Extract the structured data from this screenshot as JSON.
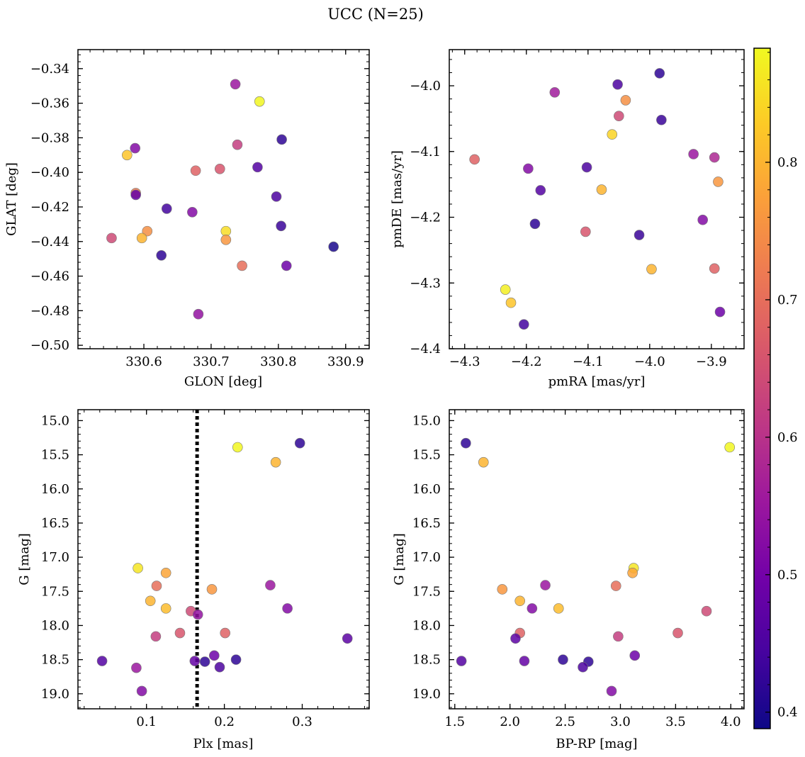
{
  "figure": {
    "title": "UCC (N=25)",
    "colorbar_ticks": [
      "0.4",
      "0.5",
      "0.6",
      "0.7",
      "0.8"
    ],
    "colorbar_range": [
      0.388,
      0.883
    ],
    "colormap": [
      "#0d0887",
      "#46039f",
      "#7201a8",
      "#9c179e",
      "#bd3786",
      "#d8576b",
      "#ed7953",
      "#fb9f3a",
      "#fdca26",
      "#f0f921"
    ]
  },
  "chart_data": [
    {
      "type": "scatter",
      "title": "",
      "xlabel": "GLON [deg]",
      "ylabel": "GLAT [deg]",
      "xlim": [
        330.502,
        330.935
      ],
      "ylim": [
        -0.502,
        -0.329
      ],
      "y_inverted": false,
      "xticks": [
        330.6,
        330.7,
        330.8,
        330.9
      ],
      "xtick_labels": [
        "330.6",
        "330.7",
        "330.8",
        "330.9"
      ],
      "yticks": [
        -0.5,
        -0.48,
        -0.46,
        -0.44,
        -0.42,
        -0.4,
        -0.38,
        -0.36,
        -0.34
      ],
      "ytick_labels": [
        "−0.50",
        "−0.48",
        "−0.46",
        "−0.44",
        "−0.42",
        "−0.40",
        "−0.38",
        "−0.36",
        "−0.34"
      ],
      "points": [
        {
          "x": 330.736,
          "y": -0.349,
          "c": 0.55
        },
        {
          "x": 330.772,
          "y": -0.359,
          "c": 0.88
        },
        {
          "x": 330.575,
          "y": -0.39,
          "c": 0.82
        },
        {
          "x": 330.587,
          "y": -0.386,
          "c": 0.52
        },
        {
          "x": 330.805,
          "y": -0.381,
          "c": 0.42
        },
        {
          "x": 330.739,
          "y": -0.384,
          "c": 0.62
        },
        {
          "x": 330.769,
          "y": -0.397,
          "c": 0.46
        },
        {
          "x": 330.713,
          "y": -0.398,
          "c": 0.66
        },
        {
          "x": 330.677,
          "y": -0.399,
          "c": 0.68
        },
        {
          "x": 330.588,
          "y": -0.412,
          "c": 0.72
        },
        {
          "x": 330.588,
          "y": -0.413,
          "c": 0.48
        },
        {
          "x": 330.797,
          "y": -0.414,
          "c": 0.45
        },
        {
          "x": 330.634,
          "y": -0.421,
          "c": 0.44
        },
        {
          "x": 330.672,
          "y": -0.423,
          "c": 0.52
        },
        {
          "x": 330.722,
          "y": -0.434,
          "c": 0.85
        },
        {
          "x": 330.804,
          "y": -0.431,
          "c": 0.43
        },
        {
          "x": 330.605,
          "y": -0.434,
          "c": 0.75
        },
        {
          "x": 330.597,
          "y": -0.438,
          "c": 0.8
        },
        {
          "x": 330.552,
          "y": -0.438,
          "c": 0.64
        },
        {
          "x": 330.722,
          "y": -0.439,
          "c": 0.76
        },
        {
          "x": 330.626,
          "y": -0.448,
          "c": 0.42
        },
        {
          "x": 330.882,
          "y": -0.443,
          "c": 0.4
        },
        {
          "x": 330.746,
          "y": -0.454,
          "c": 0.7
        },
        {
          "x": 330.812,
          "y": -0.454,
          "c": 0.49
        },
        {
          "x": 330.681,
          "y": -0.482,
          "c": 0.54
        }
      ]
    },
    {
      "type": "scatter",
      "title": "",
      "xlabel": "pmRA [mas/yr]",
      "ylabel": "pmDE [mas/yr]",
      "xlim": [
        -4.325,
        -3.847
      ],
      "ylim": [
        -4.4,
        -3.945
      ],
      "y_inverted": false,
      "xticks": [
        -4.3,
        -4.2,
        -4.1,
        -4.0,
        -3.9
      ],
      "xtick_labels": [
        "−4.3",
        "−4.2",
        "−4.1",
        "−4.0",
        "−3.9"
      ],
      "yticks": [
        -4.4,
        -4.3,
        -4.2,
        -4.1,
        -4.0
      ],
      "ytick_labels": [
        "−4.4",
        "−4.3",
        "−4.2",
        "−4.1",
        "−4.0"
      ],
      "points": [
        {
          "x": -3.984,
          "y": -3.981,
          "c": 0.42
        },
        {
          "x": -4.052,
          "y": -3.998,
          "c": 0.45
        },
        {
          "x": -4.154,
          "y": -4.01,
          "c": 0.56
        },
        {
          "x": -4.039,
          "y": -4.022,
          "c": 0.75
        },
        {
          "x": -4.05,
          "y": -4.046,
          "c": 0.64
        },
        {
          "x": -3.981,
          "y": -4.052,
          "c": 0.43
        },
        {
          "x": -4.061,
          "y": -4.074,
          "c": 0.84
        },
        {
          "x": -3.929,
          "y": -4.104,
          "c": 0.55
        },
        {
          "x": -3.895,
          "y": -4.109,
          "c": 0.58
        },
        {
          "x": -4.284,
          "y": -4.112,
          "c": 0.68
        },
        {
          "x": -4.102,
          "y": -4.124,
          "c": 0.45
        },
        {
          "x": -4.197,
          "y": -4.126,
          "c": 0.52
        },
        {
          "x": -3.889,
          "y": -4.146,
          "c": 0.76
        },
        {
          "x": -4.177,
          "y": -4.159,
          "c": 0.46
        },
        {
          "x": -4.078,
          "y": -4.158,
          "c": 0.8
        },
        {
          "x": -3.914,
          "y": -4.204,
          "c": 0.52
        },
        {
          "x": -4.186,
          "y": -4.21,
          "c": 0.42
        },
        {
          "x": -4.104,
          "y": -4.222,
          "c": 0.66
        },
        {
          "x": -4.017,
          "y": -4.227,
          "c": 0.43
        },
        {
          "x": -3.895,
          "y": -4.278,
          "c": 0.68
        },
        {
          "x": -3.997,
          "y": -4.279,
          "c": 0.8
        },
        {
          "x": -4.234,
          "y": -4.31,
          "c": 0.87
        },
        {
          "x": -4.225,
          "y": -4.33,
          "c": 0.82
        },
        {
          "x": -3.886,
          "y": -4.344,
          "c": 0.49
        },
        {
          "x": -4.204,
          "y": -4.363,
          "c": 0.44
        }
      ]
    },
    {
      "type": "scatter",
      "title": "",
      "xlabel": "Plx [mas]",
      "ylabel": "G [mag]",
      "xlim": [
        0.012,
        0.386
      ],
      "ylim": [
        19.22,
        14.84
      ],
      "y_inverted": true,
      "vline": {
        "x": 0.165,
        "style": "dotted"
      },
      "xticks": [
        0.1,
        0.2,
        0.3
      ],
      "xtick_labels": [
        "0.1",
        "0.2",
        "0.3"
      ],
      "yticks": [
        15.0,
        15.5,
        16.0,
        16.5,
        17.0,
        17.5,
        18.0,
        18.5,
        19.0
      ],
      "ytick_labels": [
        "15.0",
        "15.5",
        "16.0",
        "16.5",
        "17.0",
        "17.5",
        "18.0",
        "18.5",
        "19.0"
      ],
      "points": [
        {
          "x": 0.297,
          "y": 15.33,
          "c": 0.42
        },
        {
          "x": 0.217,
          "y": 15.39,
          "c": 0.88
        },
        {
          "x": 0.266,
          "y": 15.61,
          "c": 0.8
        },
        {
          "x": 0.089,
          "y": 17.16,
          "c": 0.86
        },
        {
          "x": 0.125,
          "y": 17.23,
          "c": 0.78
        },
        {
          "x": 0.113,
          "y": 17.42,
          "c": 0.7
        },
        {
          "x": 0.259,
          "y": 17.41,
          "c": 0.55
        },
        {
          "x": 0.184,
          "y": 17.47,
          "c": 0.76
        },
        {
          "x": 0.105,
          "y": 17.64,
          "c": 0.8
        },
        {
          "x": 0.125,
          "y": 17.75,
          "c": 0.81
        },
        {
          "x": 0.281,
          "y": 17.75,
          "c": 0.52
        },
        {
          "x": 0.157,
          "y": 17.79,
          "c": 0.64
        },
        {
          "x": 0.166,
          "y": 17.84,
          "c": 0.54
        },
        {
          "x": 0.143,
          "y": 18.11,
          "c": 0.66
        },
        {
          "x": 0.201,
          "y": 18.11,
          "c": 0.68
        },
        {
          "x": 0.112,
          "y": 18.16,
          "c": 0.62
        },
        {
          "x": 0.358,
          "y": 18.19,
          "c": 0.47
        },
        {
          "x": 0.187,
          "y": 18.44,
          "c": 0.49
        },
        {
          "x": 0.215,
          "y": 18.5,
          "c": 0.42
        },
        {
          "x": 0.043,
          "y": 18.52,
          "c": 0.46
        },
        {
          "x": 0.162,
          "y": 18.52,
          "c": 0.48
        },
        {
          "x": 0.175,
          "y": 18.53,
          "c": 0.42
        },
        {
          "x": 0.087,
          "y": 18.62,
          "c": 0.55
        },
        {
          "x": 0.194,
          "y": 18.61,
          "c": 0.45
        },
        {
          "x": 0.094,
          "y": 18.96,
          "c": 0.52
        }
      ]
    },
    {
      "type": "scatter",
      "title": "",
      "xlabel": "BP-RP [mag]",
      "ylabel": "G [mag]",
      "xlim": [
        1.45,
        4.12
      ],
      "ylim": [
        19.22,
        14.84
      ],
      "y_inverted": true,
      "xticks": [
        1.5,
        2.0,
        2.5,
        3.0,
        3.5,
        4.0
      ],
      "xtick_labels": [
        "1.5",
        "2.0",
        "2.5",
        "3.0",
        "3.5",
        "4.0"
      ],
      "yticks": [
        15.0,
        15.5,
        16.0,
        16.5,
        17.0,
        17.5,
        18.0,
        18.5,
        19.0
      ],
      "ytick_labels": [
        "15.0",
        "15.5",
        "16.0",
        "16.5",
        "17.0",
        "17.5",
        "18.0",
        "18.5",
        "19.0"
      ],
      "points": [
        {
          "x": 1.6,
          "y": 15.33,
          "c": 0.42
        },
        {
          "x": 3.99,
          "y": 15.39,
          "c": 0.88
        },
        {
          "x": 1.76,
          "y": 15.61,
          "c": 0.8
        },
        {
          "x": 3.12,
          "y": 17.16,
          "c": 0.86
        },
        {
          "x": 3.11,
          "y": 17.23,
          "c": 0.78
        },
        {
          "x": 2.32,
          "y": 17.41,
          "c": 0.55
        },
        {
          "x": 2.96,
          "y": 17.42,
          "c": 0.7
        },
        {
          "x": 1.93,
          "y": 17.47,
          "c": 0.76
        },
        {
          "x": 2.09,
          "y": 17.64,
          "c": 0.8
        },
        {
          "x": 2.2,
          "y": 17.75,
          "c": 0.52
        },
        {
          "x": 2.44,
          "y": 17.75,
          "c": 0.81
        },
        {
          "x": 3.78,
          "y": 17.79,
          "c": 0.64
        },
        {
          "x": 2.09,
          "y": 18.11,
          "c": 0.68
        },
        {
          "x": 3.52,
          "y": 18.11,
          "c": 0.66
        },
        {
          "x": 2.98,
          "y": 18.16,
          "c": 0.62
        },
        {
          "x": 2.05,
          "y": 18.19,
          "c": 0.47
        },
        {
          "x": 3.13,
          "y": 18.44,
          "c": 0.49
        },
        {
          "x": 2.48,
          "y": 18.5,
          "c": 0.42
        },
        {
          "x": 1.56,
          "y": 18.52,
          "c": 0.46
        },
        {
          "x": 2.13,
          "y": 18.52,
          "c": 0.48
        },
        {
          "x": 2.71,
          "y": 18.53,
          "c": 0.42
        },
        {
          "x": 2.66,
          "y": 18.61,
          "c": 0.45
        },
        {
          "x": 2.92,
          "y": 18.96,
          "c": 0.52
        }
      ]
    }
  ]
}
